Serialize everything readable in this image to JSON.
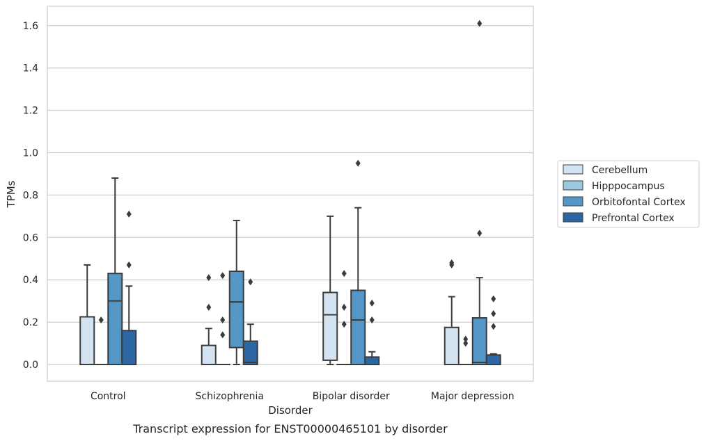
{
  "chart_data": {
    "type": "box",
    "caption": "Transcript expression for ENST00000465101 by disorder",
    "xlabel": "Disorder",
    "ylabel": "TPMs",
    "ylim": [
      -0.08,
      1.69
    ],
    "yticks": [
      "0.0",
      "0.2",
      "0.4",
      "0.6",
      "0.8",
      "1.0",
      "1.2",
      "1.4",
      "1.6"
    ],
    "grid": true,
    "legend_position": "right",
    "categories": [
      "Control",
      "Schizophrenia",
      "Bipolar disorder",
      "Major depression"
    ],
    "series": [
      {
        "name": "Cerebellum",
        "color": "#d3e3f2",
        "boxes": [
          {
            "whislo": 0.0,
            "q1": 0.0,
            "med": 0.0,
            "q3": 0.225,
            "whishi": 0.47,
            "fliers": []
          },
          {
            "whislo": 0.0,
            "q1": 0.0,
            "med": 0.0,
            "q3": 0.09,
            "whishi": 0.17,
            "fliers": [
              0.27,
              0.41
            ]
          },
          {
            "whislo": 0.0,
            "q1": 0.02,
            "med": 0.235,
            "q3": 0.34,
            "whishi": 0.7,
            "fliers": []
          },
          {
            "whislo": 0.0,
            "q1": 0.0,
            "med": 0.0,
            "q3": 0.175,
            "whishi": 0.32,
            "fliers": [
              0.47,
              0.48
            ]
          }
        ]
      },
      {
        "name": "Hipppocampus",
        "color": "#9dc9e0",
        "boxes": [
          {
            "whislo": 0.0,
            "q1": 0.0,
            "med": 0.0,
            "q3": 0.0,
            "whishi": 0.0,
            "fliers": [
              0.21
            ]
          },
          {
            "whislo": 0.0,
            "q1": 0.0,
            "med": 0.0,
            "q3": 0.0,
            "whishi": 0.0,
            "fliers": [
              0.14,
              0.21,
              0.42
            ]
          },
          {
            "whislo": 0.0,
            "q1": 0.0,
            "med": 0.0,
            "q3": 0.0,
            "whishi": 0.0,
            "fliers": [
              0.19,
              0.27,
              0.43
            ]
          },
          {
            "whislo": 0.0,
            "q1": 0.0,
            "med": 0.0,
            "q3": 0.0,
            "whishi": 0.0,
            "fliers": [
              0.1,
              0.12
            ]
          }
        ]
      },
      {
        "name": "Orbitofontal Cortex",
        "color": "#5497c6",
        "boxes": [
          {
            "whislo": 0.0,
            "q1": 0.0,
            "med": 0.3,
            "q3": 0.43,
            "whishi": 0.88,
            "fliers": []
          },
          {
            "whislo": 0.0,
            "q1": 0.08,
            "med": 0.295,
            "q3": 0.44,
            "whishi": 0.68,
            "fliers": []
          },
          {
            "whislo": 0.0,
            "q1": 0.0,
            "med": 0.21,
            "q3": 0.35,
            "whishi": 0.74,
            "fliers": [
              0.95
            ]
          },
          {
            "whislo": 0.0,
            "q1": 0.0,
            "med": 0.01,
            "q3": 0.22,
            "whishi": 0.41,
            "fliers": [
              0.62,
              1.61
            ]
          }
        ]
      },
      {
        "name": "Prefrontal Cortex",
        "color": "#2c66a3",
        "boxes": [
          {
            "whislo": 0.0,
            "q1": 0.0,
            "med": 0.0,
            "q3": 0.16,
            "whishi": 0.37,
            "fliers": [
              0.47,
              0.71
            ]
          },
          {
            "whislo": 0.0,
            "q1": 0.0,
            "med": 0.01,
            "q3": 0.11,
            "whishi": 0.19,
            "fliers": [
              0.39
            ]
          },
          {
            "whislo": 0.0,
            "q1": 0.0,
            "med": 0.0,
            "q3": 0.035,
            "whishi": 0.06,
            "fliers": [
              0.21,
              0.29
            ]
          },
          {
            "whislo": 0.0,
            "q1": 0.0,
            "med": 0.0,
            "q3": 0.045,
            "whishi": 0.05,
            "fliers": [
              0.18,
              0.24,
              0.31
            ]
          }
        ]
      }
    ]
  }
}
